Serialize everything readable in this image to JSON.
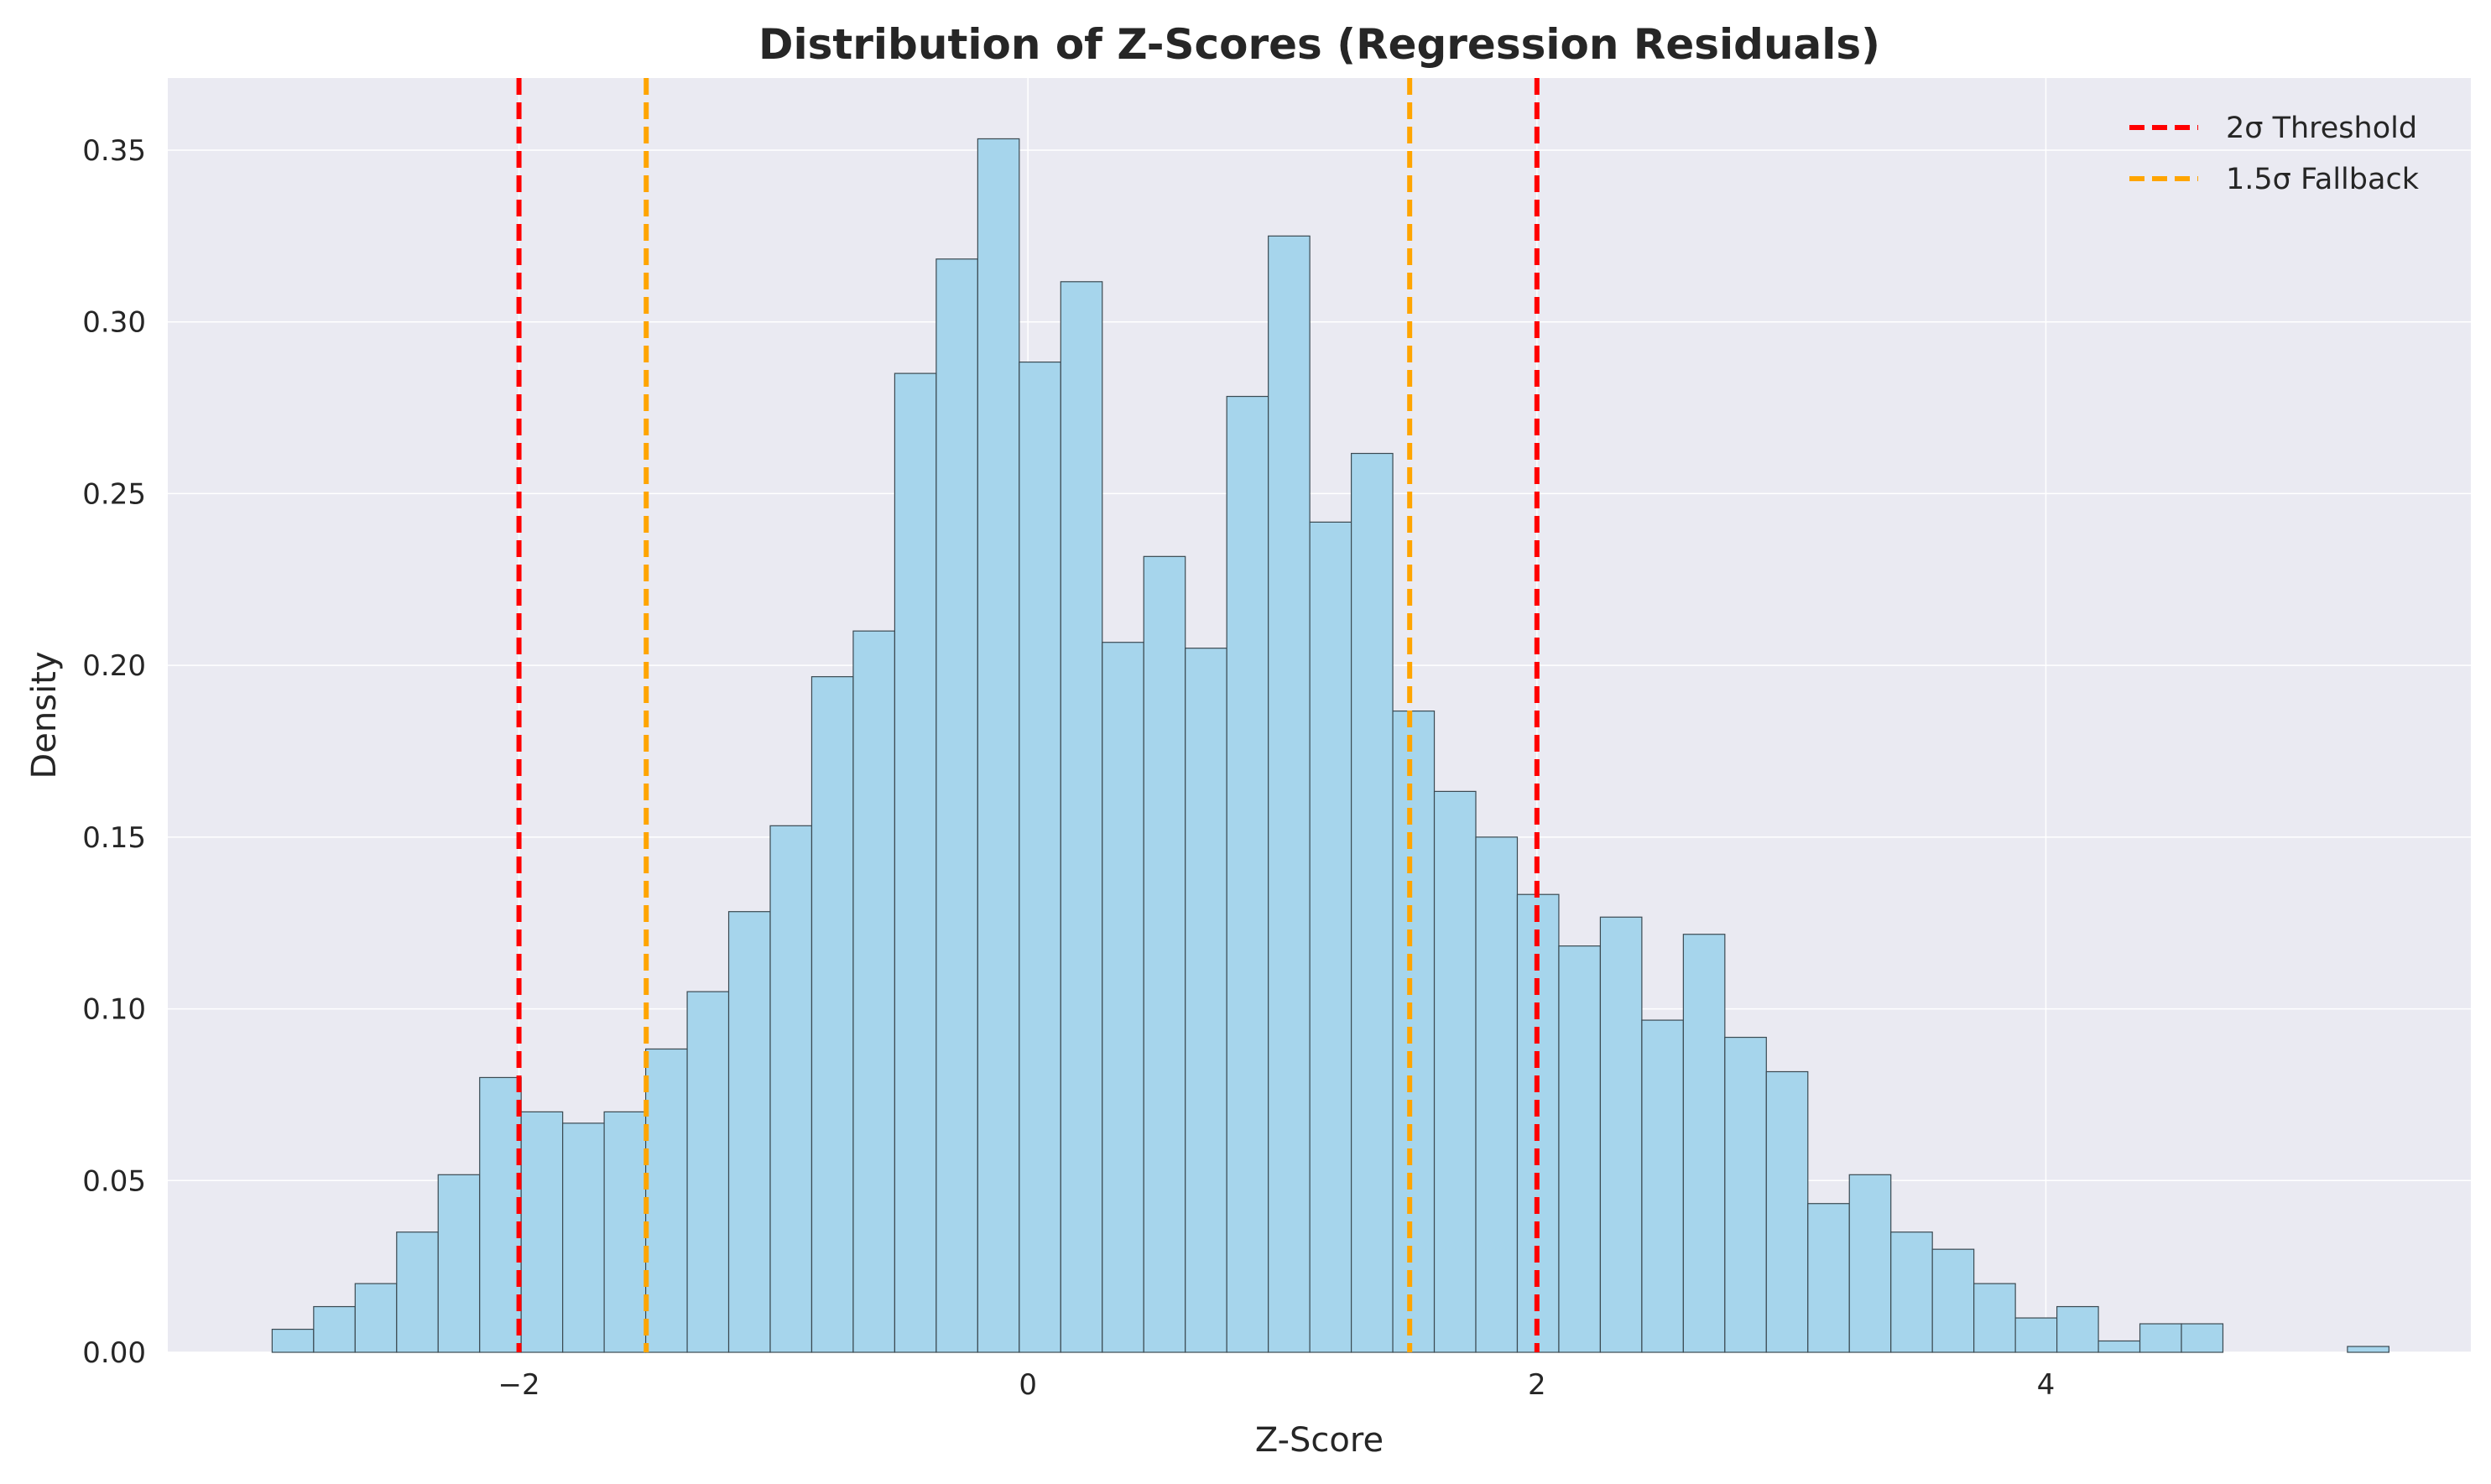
{
  "chart_data": {
    "type": "bar",
    "title": "Distribution of Z-Scores (Regression Residuals)",
    "xlabel": "Z-Score",
    "ylabel": "Density",
    "xlim": [
      -3.38,
      5.67
    ],
    "ylim": [
      0.0,
      0.371
    ],
    "x_ticks": [
      -2,
      0,
      2,
      4
    ],
    "x_tick_labels": [
      "−2",
      "0",
      "2",
      "4"
    ],
    "y_ticks": [
      0.0,
      0.05,
      0.1,
      0.15,
      0.2,
      0.25,
      0.3,
      0.35
    ],
    "y_tick_labels": [
      "0.00",
      "0.05",
      "0.10",
      "0.15",
      "0.20",
      "0.25",
      "0.30",
      "0.35"
    ],
    "grid": true,
    "legend_position": "top-right",
    "bin_start": -2.97,
    "bin_width": 0.1631,
    "values": [
      0.0067,
      0.0133,
      0.02,
      0.035,
      0.0517,
      0.08,
      0.07,
      0.0667,
      0.07,
      0.0883,
      0.105,
      0.1283,
      0.1533,
      0.1967,
      0.21,
      0.285,
      0.3183,
      0.3533,
      0.2883,
      0.3117,
      0.2067,
      0.2317,
      0.205,
      0.2783,
      0.325,
      0.2417,
      0.2617,
      0.1867,
      0.1633,
      0.15,
      0.1333,
      0.1183,
      0.1267,
      0.0967,
      0.1217,
      0.0917,
      0.0817,
      0.0433,
      0.0517,
      0.035,
      0.03,
      0.02,
      0.01,
      0.0133,
      0.0033,
      0.0083,
      0.0083,
      0,
      0,
      0,
      0.0017
    ],
    "bar_color": "#a6d5ec",
    "bar_edge_color": "#3b4a52",
    "reference_lines": [
      {
        "name": "2σ Threshold",
        "x": [
          -2,
          2
        ],
        "color": "#ff0000"
      },
      {
        "name": "1.5σ Fallback",
        "x": [
          -1.5,
          1.5
        ],
        "color": "#ffa500"
      }
    ]
  }
}
